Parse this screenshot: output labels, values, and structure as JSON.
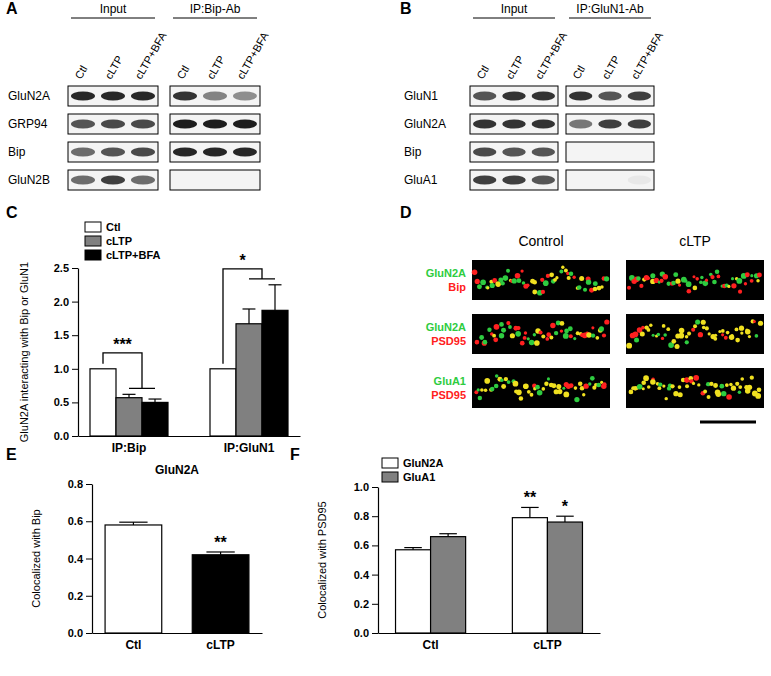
{
  "figure": {
    "panel_labels": [
      "A",
      "B",
      "C",
      "D",
      "E",
      "F"
    ],
    "blots": [
      {
        "groups": [
          "Input",
          "IP:Bip-Ab"
        ],
        "lanes": [
          "Ctl",
          "cLTP",
          "cLTP+BFA"
        ],
        "rows": [
          {
            "label": "GluN2A",
            "bands": [
              [
                0.9,
                0.9,
                0.9
              ],
              [
                0.85,
                0.5,
                0.45
              ]
            ]
          },
          {
            "label": "GRP94",
            "bands": [
              [
                0.7,
                0.75,
                0.75
              ],
              [
                0.95,
                0.95,
                0.95
              ]
            ]
          },
          {
            "label": "Bip",
            "bands": [
              [
                0.6,
                0.7,
                0.75
              ],
              [
                0.9,
                0.9,
                0.9
              ]
            ]
          },
          {
            "label": "GluN2B",
            "bands": [
              [
                0.6,
                0.8,
                0.6
              ],
              [
                0,
                0,
                0
              ]
            ]
          }
        ]
      },
      {
        "groups": [
          "Input",
          "IP:GluN1-Ab"
        ],
        "lanes": [
          "Ctl",
          "cLTP",
          "cLTP+BFA"
        ],
        "rows": [
          {
            "label": "GluN1",
            "bands": [
              [
                0.7,
                0.85,
                0.85
              ],
              [
                0.85,
                0.7,
                0.8
              ]
            ]
          },
          {
            "label": "GluN2A",
            "bands": [
              [
                0.85,
                0.85,
                0.85
              ],
              [
                0.55,
                0.8,
                0.8
              ]
            ]
          },
          {
            "label": "Bip",
            "bands": [
              [
                0.75,
                0.7,
                0.7
              ],
              [
                0,
                0,
                0
              ]
            ]
          },
          {
            "label": "GluA1",
            "bands": [
              [
                0.8,
                0.8,
                0.7
              ],
              [
                0,
                0,
                0.05
              ]
            ]
          }
        ]
      }
    ],
    "micrograph": {
      "columns": [
        "Control",
        "cLTP"
      ],
      "rows": [
        {
          "channels": [
            {
              "label": "GluN2A",
              "color": "#2ecc40"
            },
            {
              "label": "Bip",
              "color": "#ff2020"
            }
          ]
        },
        {
          "channels": [
            {
              "label": "GluN2A",
              "color": "#2ecc40"
            },
            {
              "label": "PSD95",
              "color": "#ff2020"
            }
          ]
        },
        {
          "channels": [
            {
              "label": "GluA1",
              "color": "#2ecc40"
            },
            {
              "label": "PSD95",
              "color": "#ff2020"
            }
          ]
        }
      ]
    }
  },
  "chart_data": [
    {
      "type": "bar",
      "y_label": "GluN2A interacting with Bip or GluN1",
      "categories": [
        "IP:Bip",
        "IP:GluN1"
      ],
      "series": [
        {
          "name": "Ctl",
          "color": "#ffffff",
          "values": [
            1,
            1
          ]
        },
        {
          "name": "cLTP",
          "color": "#808080",
          "values": [
            0.57,
            1.67
          ],
          "errors": [
            0.05,
            0.22
          ]
        },
        {
          "name": "cLTP+BFA",
          "color": "#000000",
          "values": [
            0.5,
            1.87
          ],
          "errors": [
            0.05,
            0.38
          ]
        }
      ],
      "significance": [
        "***",
        "*"
      ],
      "ylim": [
        0,
        2.5
      ],
      "yticks": [
        {
          "value": 0,
          "label": "0.0"
        },
        0.5,
        {
          "value": 1,
          "label": "1.0"
        },
        1.5,
        {
          "value": 2,
          "label": "2.0"
        },
        2.5
      ],
      "legend": "top-left"
    },
    {
      "type": "bar",
      "title": "GluN2A",
      "y_label": "Colocalized with Bip",
      "categories": [
        "Ctl",
        "cLTP"
      ],
      "values": [
        0.58,
        0.42
      ],
      "errors": [
        0.015,
        0.015
      ],
      "colors": [
        "#ffffff",
        "#000000"
      ],
      "significance": [
        null,
        "**"
      ],
      "ylim": [
        0,
        0.8
      ],
      "yticks": [
        {
          "value": 0,
          "label": "0.0"
        },
        0.2,
        0.4,
        0.6,
        0.8
      ]
    },
    {
      "type": "bar",
      "y_label": "Colocalized with PSD95",
      "categories": [
        "Ctl",
        "cLTP"
      ],
      "series": [
        {
          "name": "GluN2A",
          "color": "#ffffff",
          "values": [
            0.57,
            0.79
          ],
          "errors": [
            0.015,
            0.07
          ],
          "significance": [
            null,
            "**"
          ]
        },
        {
          "name": "GluA1",
          "color": "#808080",
          "values": [
            0.66,
            0.76
          ],
          "errors": [
            0.02,
            0.04
          ],
          "significance": [
            null,
            "*"
          ]
        }
      ],
      "ylim": [
        0,
        1
      ],
      "yticks": [
        {
          "value": 0,
          "label": "0.0"
        },
        0.2,
        0.4,
        0.6,
        0.8,
        {
          "value": 1,
          "label": "1.0"
        }
      ],
      "legend": "top-left"
    }
  ]
}
